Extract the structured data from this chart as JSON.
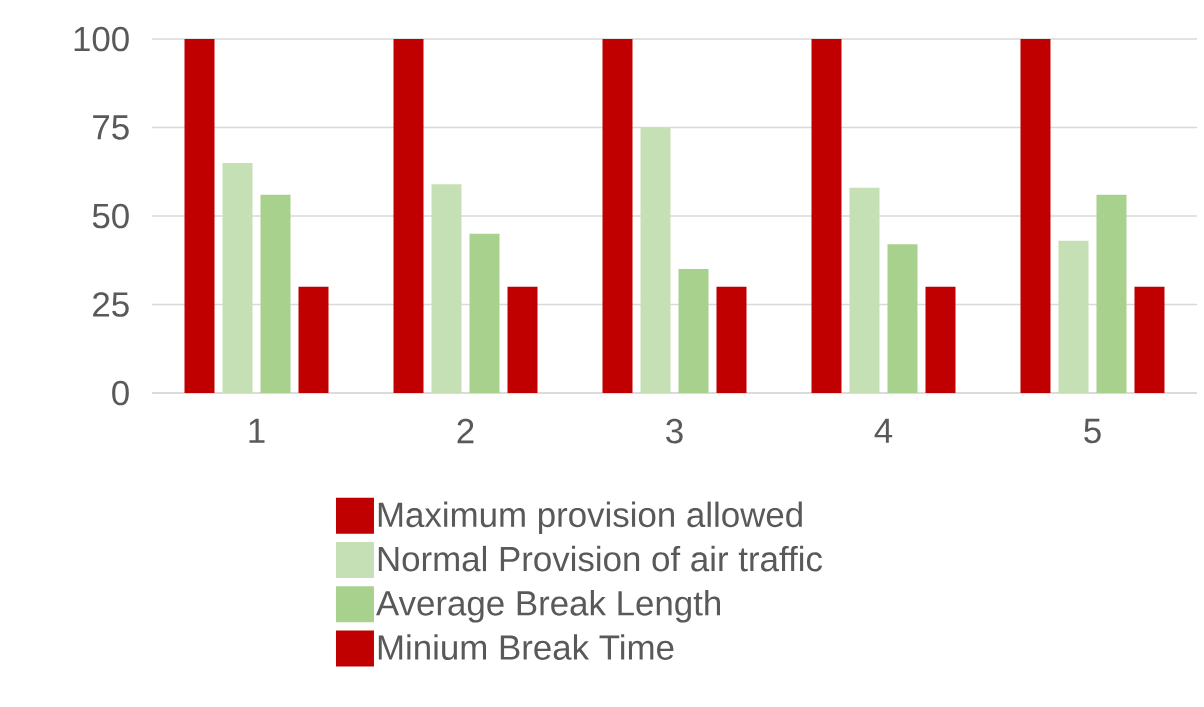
{
  "chart_data": {
    "type": "bar",
    "categories": [
      "1",
      "2",
      "3",
      "4",
      "5"
    ],
    "series": [
      {
        "name": "Maximum provision allowed",
        "color": "#c00000",
        "values": [
          100,
          100,
          100,
          100,
          100
        ]
      },
      {
        "name": "Normal Provision of air traffic",
        "color": "#c5e0b4",
        "values": [
          65,
          59,
          75,
          58,
          43
        ]
      },
      {
        "name": "Average Break Length",
        "color": "#a9d18e",
        "values": [
          56,
          45,
          35,
          42,
          56
        ]
      },
      {
        "name": "Minium Break Time",
        "color": "#c00000",
        "values": [
          30,
          30,
          30,
          30,
          30
        ]
      }
    ],
    "ylim": [
      0,
      100
    ],
    "yticks": [
      0,
      25,
      50,
      75,
      100
    ],
    "grid": "y",
    "legend": "bottom"
  }
}
